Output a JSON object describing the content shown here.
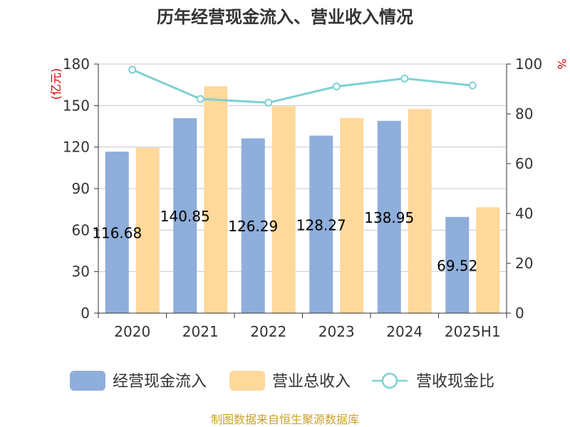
{
  "chart_data": {
    "type": "bar",
    "title": "历年经营现金流入、营业收入情况",
    "categories": [
      "2020",
      "2021",
      "2022",
      "2023",
      "2024",
      "2025H1"
    ],
    "left_axis": {
      "unit": "(亿元)",
      "ylim": [
        0,
        180
      ],
      "ticks": [
        "0",
        "30",
        "60",
        "90",
        "120",
        "150",
        "180"
      ]
    },
    "right_axis": {
      "unit": "%",
      "ylim": [
        0,
        100
      ],
      "ticks": [
        "0",
        "20",
        "40",
        "60",
        "80",
        "100"
      ]
    },
    "series": [
      {
        "name": "经营现金流入",
        "type": "bar",
        "axis": "left",
        "color": "#8eaedb",
        "values": [
          116.68,
          140.85,
          126.29,
          128.27,
          138.95,
          69.52
        ],
        "labels": [
          "116.68",
          "140.85",
          "126.29",
          "128.27",
          "138.95",
          "69.52"
        ]
      },
      {
        "name": "营业总收入",
        "type": "bar",
        "axis": "left",
        "color": "#ffd89b",
        "values": [
          119.5,
          164.0,
          149.5,
          141.0,
          147.5,
          76.5
        ]
      },
      {
        "name": "营收现金比",
        "type": "line",
        "axis": "right",
        "color": "#7fd0d3",
        "values": [
          97.7,
          86.0,
          84.5,
          91.0,
          94.2,
          91.4
        ]
      }
    ],
    "grid": true,
    "legend": "bottom"
  },
  "source": "制图数据来自恒生聚源数据库"
}
